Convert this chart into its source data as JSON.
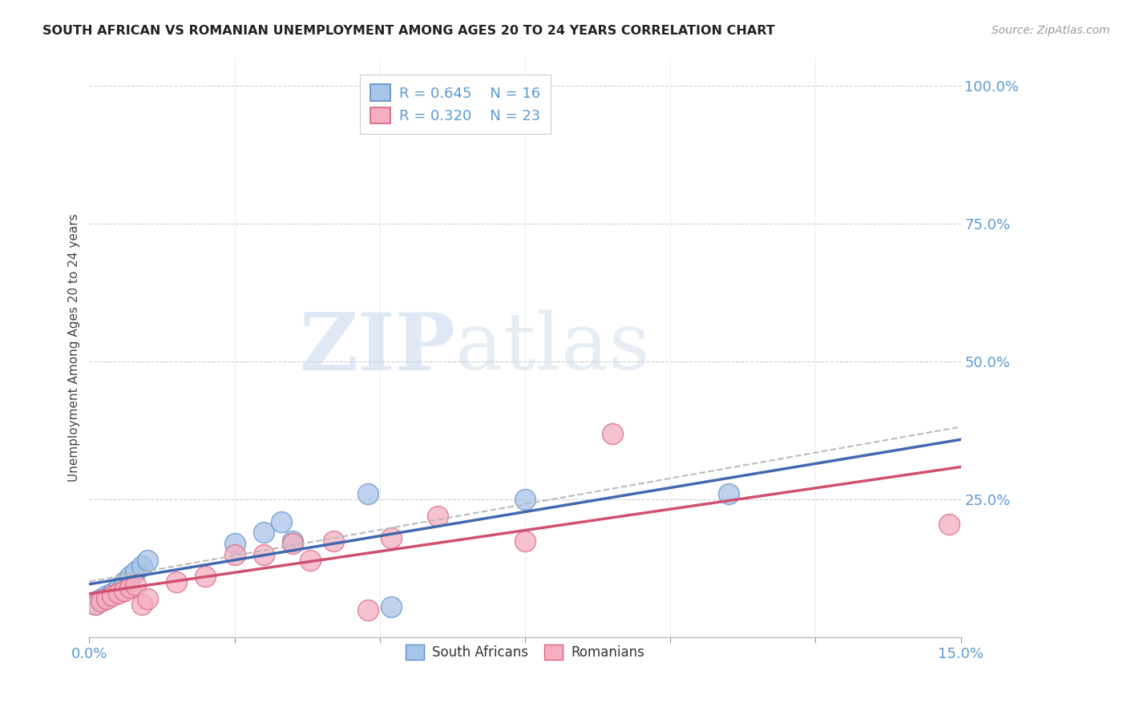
{
  "title": "SOUTH AFRICAN VS ROMANIAN UNEMPLOYMENT AMONG AGES 20 TO 24 YEARS CORRELATION CHART",
  "source": "Source: ZipAtlas.com",
  "ylabel": "Unemployment Among Ages 20 to 24 years",
  "xlim": [
    0.0,
    0.15
  ],
  "ylim": [
    0.0,
    1.05
  ],
  "xtick_positions": [
    0.0,
    0.025,
    0.05,
    0.075,
    0.1,
    0.125,
    0.15
  ],
  "xtick_labels": [
    "0.0%",
    "",
    "",
    "",
    "",
    "",
    "15.0%"
  ],
  "ytick_positions": [
    0.0,
    0.25,
    0.5,
    0.75,
    1.0
  ],
  "ytick_labels": [
    "",
    "25.0%",
    "50.0%",
    "75.0%",
    "100.0%"
  ],
  "blue_fill": "#a8c4e8",
  "blue_edge": "#5b8ec9",
  "pink_fill": "#f5aec0",
  "pink_edge": "#d9607e",
  "blue_line_color": "#4169b0",
  "pink_line_color": "#d05070",
  "dash_color": "#bbbbbb",
  "sa_x": [
    0.001,
    0.002,
    0.003,
    0.004,
    0.005,
    0.006,
    0.007,
    0.008,
    0.009,
    0.01,
    0.025,
    0.03,
    0.033,
    0.035,
    0.048,
    0.052,
    0.075,
    0.11
  ],
  "sa_y": [
    0.06,
    0.07,
    0.075,
    0.08,
    0.09,
    0.1,
    0.11,
    0.12,
    0.13,
    0.14,
    0.17,
    0.19,
    0.21,
    0.175,
    0.26,
    0.055,
    0.25,
    0.26
  ],
  "ro_x": [
    0.001,
    0.002,
    0.003,
    0.004,
    0.005,
    0.006,
    0.007,
    0.008,
    0.009,
    0.01,
    0.015,
    0.02,
    0.025,
    0.03,
    0.035,
    0.038,
    0.042,
    0.048,
    0.052,
    0.06,
    0.075,
    0.09,
    0.148
  ],
  "ro_y": [
    0.06,
    0.065,
    0.07,
    0.075,
    0.08,
    0.085,
    0.09,
    0.095,
    0.06,
    0.07,
    0.1,
    0.11,
    0.15,
    0.15,
    0.17,
    0.14,
    0.175,
    0.05,
    0.18,
    0.22,
    0.175,
    0.37,
    0.205
  ],
  "watermark_zip": "ZIP",
  "watermark_atlas": "atlas",
  "background_color": "#ffffff",
  "grid_color": "#cccccc",
  "title_color": "#222222",
  "source_color": "#999999",
  "axis_label_color": "#444444",
  "tick_color": "#5b9bd5"
}
